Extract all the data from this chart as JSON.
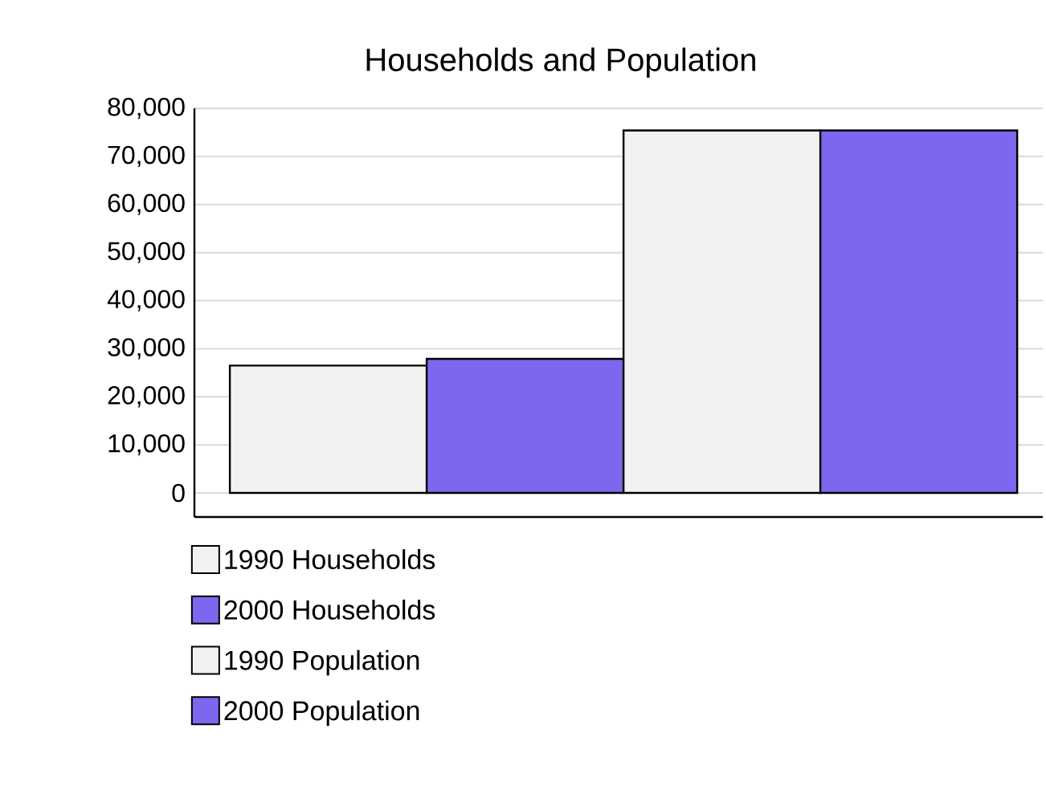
{
  "chart_data": {
    "type": "bar",
    "title": "Households and Population",
    "categories": [
      null
    ],
    "series": [
      {
        "name": "1990 Households",
        "color": "#f2f2f2",
        "values": [
          26500
        ]
      },
      {
        "name": "2000 Households",
        "color": "#7b68ee",
        "values": [
          27900
        ]
      },
      {
        "name": "1990 Population",
        "color": "#f2f2f2",
        "values": [
          75400
        ]
      },
      {
        "name": "2000 Population",
        "color": "#7b68ee",
        "values": [
          75400
        ]
      }
    ],
    "ylim": [
      -5000,
      80000
    ],
    "yticks": [
      0,
      {
        "value": 10000,
        "label": "10,000"
      },
      {
        "value": 20000,
        "label": "20,000"
      },
      {
        "value": 30000,
        "label": "30,000"
      },
      {
        "value": 40000,
        "label": "40,000"
      },
      {
        "value": 50000,
        "label": "50,000"
      },
      {
        "value": 60000,
        "label": "60,000"
      },
      {
        "value": 70000,
        "label": "70,000"
      },
      {
        "value": 80000,
        "label": "80,000"
      }
    ],
    "grid": "y",
    "legend": "bottom"
  }
}
